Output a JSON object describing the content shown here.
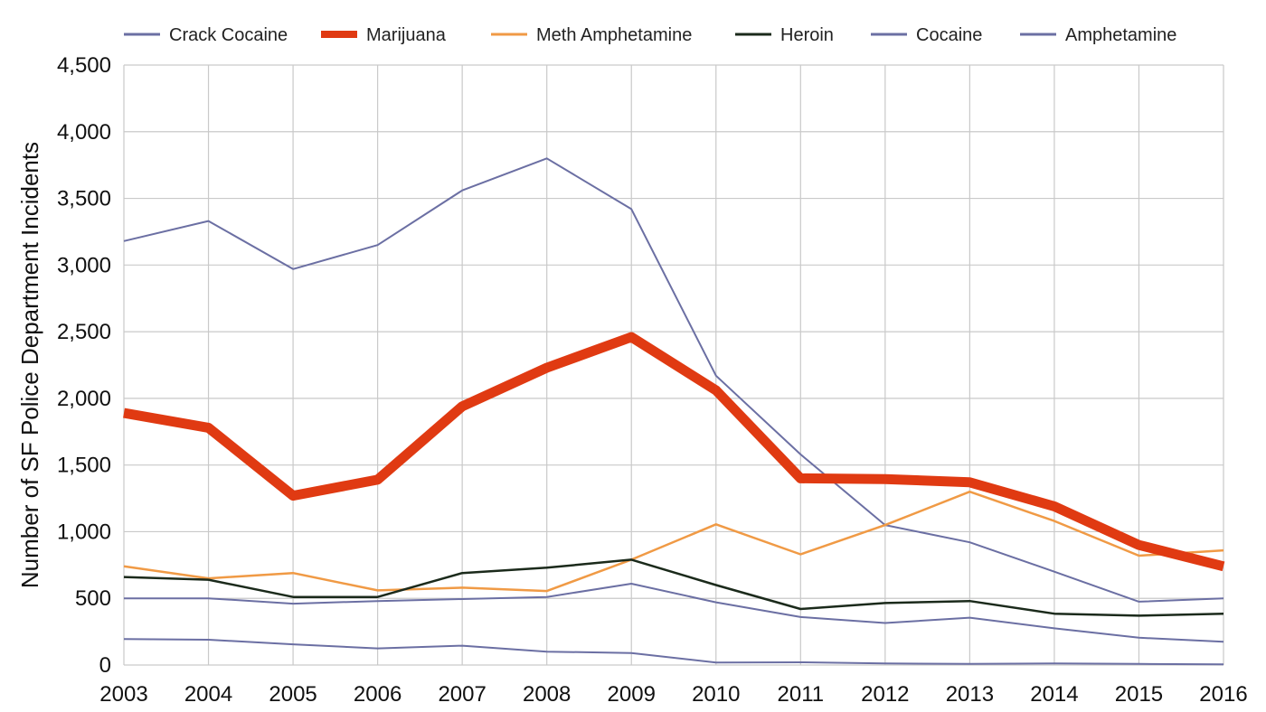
{
  "chart_data": {
    "type": "line",
    "title": "",
    "xlabel": "",
    "ylabel": "Number of SF Police Department Incidents",
    "x": [
      2003,
      2004,
      2005,
      2006,
      2007,
      2008,
      2009,
      2010,
      2011,
      2012,
      2013,
      2014,
      2015,
      2016
    ],
    "ylim": [
      0,
      4500
    ],
    "yticks": [
      0,
      500,
      1000,
      1500,
      2000,
      2500,
      3000,
      3500,
      4000,
      4500
    ],
    "ytick_labels": [
      "0",
      "500",
      "1,000",
      "1,500",
      "2,000",
      "2,500",
      "3,000",
      "3,500",
      "4,000",
      "4,500"
    ],
    "xtick_labels": [
      "2003",
      "2004",
      "2005",
      "2006",
      "2007",
      "2008",
      "2009",
      "2010",
      "2011",
      "2012",
      "2013",
      "2014",
      "2015",
      "2016"
    ],
    "grid": true,
    "legend_position": "top",
    "series": [
      {
        "name": "Crack Cocaine",
        "color": "#6b6fa3",
        "width": 2,
        "values": [
          3180,
          3330,
          2970,
          3150,
          3560,
          3800,
          3420,
          2170,
          1580,
          1050,
          920,
          700,
          475,
          500
        ]
      },
      {
        "name": "Marijuana",
        "color": "#e03a12",
        "width": 11,
        "values": [
          1890,
          1780,
          1270,
          1390,
          1940,
          2230,
          2460,
          2060,
          1400,
          1395,
          1370,
          1190,
          900,
          740
        ]
      },
      {
        "name": "Meth Amphetamine",
        "color": "#f09a45",
        "width": 2.5,
        "values": [
          740,
          650,
          690,
          560,
          580,
          555,
          790,
          1055,
          830,
          1050,
          1300,
          1080,
          820,
          860
        ]
      },
      {
        "name": "Heroin",
        "color": "#1b2a1b",
        "width": 2.5,
        "values": [
          660,
          640,
          510,
          510,
          690,
          730,
          790,
          600,
          420,
          465,
          480,
          385,
          370,
          385
        ]
      },
      {
        "name": "Cocaine",
        "color": "#6b6fa3",
        "width": 2,
        "values": [
          500,
          500,
          460,
          480,
          495,
          510,
          610,
          470,
          360,
          315,
          355,
          275,
          205,
          175
        ]
      },
      {
        "name": "Amphetamine",
        "color": "#6b6fa3",
        "width": 2,
        "values": [
          195,
          190,
          155,
          125,
          145,
          100,
          90,
          18,
          20,
          12,
          8,
          12,
          8,
          5
        ]
      }
    ]
  }
}
